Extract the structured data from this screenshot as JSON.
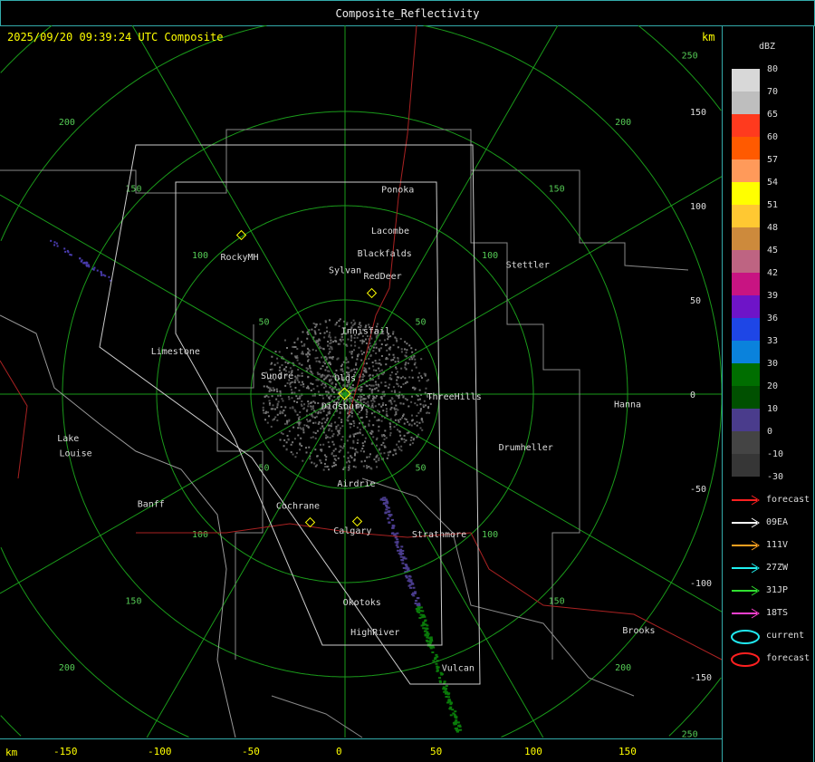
{
  "window": {
    "title": "Composite_Reflectivity"
  },
  "map": {
    "header": "2025/09/20 09:39:24 UTC Composite",
    "unit": "km",
    "range_rings_km": [
      50,
      100,
      150,
      200,
      250
    ],
    "right_ticks": [
      "150",
      "100",
      "50",
      "0",
      "-50",
      "-100",
      "-150"
    ],
    "bottom_ticks": [
      "-150",
      "-100",
      "-50",
      "0",
      "50",
      "100",
      "150"
    ],
    "bottom_unit": "km",
    "towns": [
      {
        "name": "Ponoka",
        "x": 28,
        "y": 109
      },
      {
        "name": "Lacombe",
        "x": 24,
        "y": 87
      },
      {
        "name": "Blackfalds",
        "x": 21,
        "y": 75
      },
      {
        "name": "Sylvan",
        "x": 0,
        "y": 66
      },
      {
        "name": "RedDeer",
        "x": 20,
        "y": 63
      },
      {
        "name": "Stettler",
        "x": 97,
        "y": 69
      },
      {
        "name": "RockyMH",
        "x": -56,
        "y": 73
      },
      {
        "name": "Innisfail",
        "x": 11,
        "y": 34
      },
      {
        "name": "Limestone",
        "x": -90,
        "y": 23
      },
      {
        "name": "Sundre",
        "x": -36,
        "y": 10
      },
      {
        "name": "Olds",
        "x": 0,
        "y": 9
      },
      {
        "name": "ThreeHills",
        "x": 58,
        "y": -1
      },
      {
        "name": "Didsbury",
        "x": -1,
        "y": -6
      },
      {
        "name": "Hanna",
        "x": 150,
        "y": -5
      },
      {
        "name": "Lake",
        "x": -147,
        "y": -23
      },
      {
        "name": "Louise",
        "x": -143,
        "y": -31
      },
      {
        "name": "Drumheller",
        "x": 96,
        "y": -28
      },
      {
        "name": "Airdrie",
        "x": 6,
        "y": -47
      },
      {
        "name": "Banff",
        "x": -103,
        "y": -58
      },
      {
        "name": "Cochrane",
        "x": -25,
        "y": -59
      },
      {
        "name": "Calgary",
        "x": 4,
        "y": -72
      },
      {
        "name": "Strathmore",
        "x": 50,
        "y": -74
      },
      {
        "name": "Okotoks",
        "x": 9,
        "y": -110
      },
      {
        "name": "HighRiver",
        "x": 16,
        "y": -126
      },
      {
        "name": "Brooks",
        "x": 156,
        "y": -125
      },
      {
        "name": "Vulcan",
        "x": 60,
        "y": -145
      }
    ]
  },
  "legend": {
    "unit": "dBZ",
    "scale": [
      {
        "label": "80",
        "color": "#d8d8d8"
      },
      {
        "label": "70",
        "color": "#bebebe"
      },
      {
        "label": "65",
        "color": "#ff3a1e"
      },
      {
        "label": "60",
        "color": "#ff5a00"
      },
      {
        "label": "57",
        "color": "#ff9a5a"
      },
      {
        "label": "54",
        "color": "#ffff00"
      },
      {
        "label": "51",
        "color": "#ffc832"
      },
      {
        "label": "48",
        "color": "#cd8a3c"
      },
      {
        "label": "45",
        "color": "#be6482"
      },
      {
        "label": "42",
        "color": "#c81482"
      },
      {
        "label": "39",
        "color": "#6e14c8"
      },
      {
        "label": "36",
        "color": "#1e46e6"
      },
      {
        "label": "33",
        "color": "#0a82dc"
      },
      {
        "label": "30",
        "color": "#006e00"
      },
      {
        "label": "20",
        "color": "#005000"
      },
      {
        "label": "10",
        "color": "#4a3c8c"
      },
      {
        "label": "0",
        "color": "#444444"
      },
      {
        "label": "-10",
        "color": "#363636"
      }
    ],
    "bottom_label": "-30",
    "tracks": [
      {
        "label": "forecast",
        "color": "#ff2020"
      },
      {
        "label": "09EA",
        "color": "#ffffff"
      },
      {
        "label": "111V",
        "color": "#ffa020"
      },
      {
        "label": "27ZW",
        "color": "#20f0f0"
      },
      {
        "label": "31JP",
        "color": "#30e030"
      },
      {
        "label": "18TS",
        "color": "#ff40d0"
      }
    ],
    "cells": [
      {
        "label": "current",
        "color": "#20e8f0"
      },
      {
        "label": "forecast",
        "color": "#ff2020"
      }
    ]
  }
}
